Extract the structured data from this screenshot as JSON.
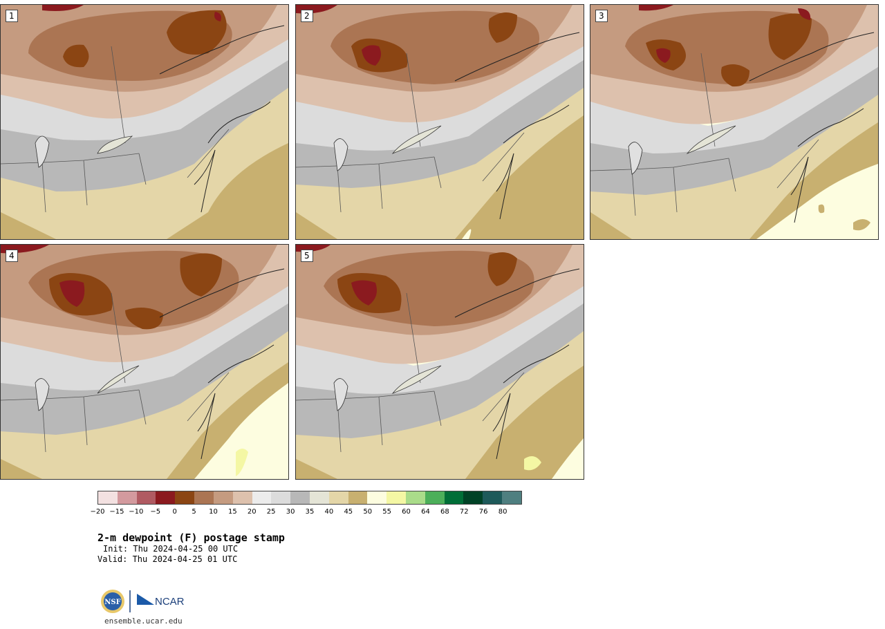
{
  "panels": [
    {
      "label": "1"
    },
    {
      "label": "2"
    },
    {
      "label": "3"
    },
    {
      "label": "4"
    },
    {
      "label": "5"
    }
  ],
  "colorbar": {
    "colors": [
      "#f3e1e1",
      "#d39a9e",
      "#b05b62",
      "#8b1a1f",
      "#8b4513",
      "#ab7553",
      "#c59b80",
      "#ddc1ad",
      "#ececec",
      "#dcdcdc",
      "#b8b8b8",
      "#e4e4d6",
      "#e4d6a8",
      "#c8b070",
      "#fdfde0",
      "#f4f7a4",
      "#aadc8a",
      "#4caf5a",
      "#006e37",
      "#004226",
      "#1e5a5a",
      "#4f7f80"
    ],
    "tick_labels": [
      "−20",
      "−15",
      "−10",
      "−5",
      "0",
      "5",
      "10",
      "15",
      "20",
      "25",
      "30",
      "35",
      "40",
      "45",
      "50",
      "55",
      "60",
      "64",
      "68",
      "72",
      "76",
      "80"
    ]
  },
  "info": {
    "title": "2-m dewpoint (F) postage stamp",
    "init": "Init: Thu 2024-04-25 00 UTC",
    "valid": "Valid: Thu 2024-04-25 01 UTC"
  },
  "logos": {
    "nsf": "NSF",
    "ncar": "NCAR"
  },
  "footer": {
    "url": "ensemble.ucar.edu"
  }
}
